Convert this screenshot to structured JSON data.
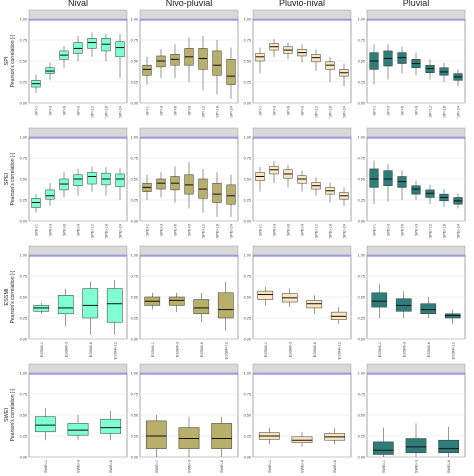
{
  "regimes": [
    "Nival",
    "Nivo-pluvial",
    "Pluvio-nival",
    "Pluvial"
  ],
  "colors": {
    "Nival": "#7fffd4",
    "Nivo-pluvial": "#b8b06a",
    "Pluvio-nival": "#fbe6bd",
    "Pluvial": "#2e7d7b",
    "reference_line": "#6d6dff",
    "grid": "#e4e4e4"
  },
  "chart_data": [
    {
      "type": "box",
      "row": 0,
      "index_label": "SPI",
      "ylabel": "Pearson's correlation [-]",
      "categories": [
        "SPI-1",
        "SPI-3",
        "SPI-6",
        "SPI-9",
        "SPI-12",
        "SPI-18",
        "SPI-24"
      ],
      "yticks": [
        0.0,
        0.25,
        0.5,
        0.75,
        1.0
      ],
      "ylim": [
        0,
        1
      ],
      "panels": [
        {
          "regime": "Nival",
          "boxes": [
            [
              0.12,
              0.19,
              0.23,
              0.27,
              0.34
            ],
            [
              0.27,
              0.35,
              0.38,
              0.42,
              0.48
            ],
            [
              0.42,
              0.52,
              0.57,
              0.62,
              0.68
            ],
            [
              0.5,
              0.59,
              0.65,
              0.72,
              0.8
            ],
            [
              0.55,
              0.65,
              0.72,
              0.77,
              0.84
            ],
            [
              0.5,
              0.62,
              0.7,
              0.77,
              0.82
            ],
            [
              0.3,
              0.55,
              0.66,
              0.73,
              0.82
            ]
          ]
        },
        {
          "regime": "Nivo-pluvial",
          "boxes": [
            [
              0.22,
              0.33,
              0.4,
              0.45,
              0.55
            ],
            [
              0.3,
              0.43,
              0.5,
              0.56,
              0.64
            ],
            [
              0.3,
              0.45,
              0.52,
              0.58,
              0.7
            ],
            [
              0.25,
              0.45,
              0.55,
              0.65,
              0.78
            ],
            [
              0.15,
              0.4,
              0.53,
              0.65,
              0.8
            ],
            [
              0.1,
              0.33,
              0.45,
              0.62,
              0.75
            ],
            [
              0.05,
              0.22,
              0.32,
              0.52,
              0.66
            ]
          ]
        },
        {
          "regime": "Pluvio-nival",
          "boxes": [
            [
              0.35,
              0.5,
              0.55,
              0.59,
              0.66
            ],
            [
              0.55,
              0.63,
              0.67,
              0.71,
              0.76
            ],
            [
              0.52,
              0.59,
              0.63,
              0.67,
              0.72
            ],
            [
              0.48,
              0.56,
              0.6,
              0.64,
              0.7
            ],
            [
              0.38,
              0.49,
              0.54,
              0.58,
              0.64
            ],
            [
              0.25,
              0.4,
              0.45,
              0.49,
              0.55
            ],
            [
              0.2,
              0.32,
              0.36,
              0.4,
              0.47
            ]
          ]
        },
        {
          "regime": "Pluvial",
          "boxes": [
            [
              0.22,
              0.4,
              0.5,
              0.6,
              0.7
            ],
            [
              0.28,
              0.44,
              0.53,
              0.62,
              0.7
            ],
            [
              0.35,
              0.47,
              0.54,
              0.6,
              0.67
            ],
            [
              0.33,
              0.42,
              0.47,
              0.52,
              0.6
            ],
            [
              0.28,
              0.36,
              0.41,
              0.45,
              0.52
            ],
            [
              0.25,
              0.33,
              0.37,
              0.42,
              0.48
            ],
            [
              0.2,
              0.27,
              0.31,
              0.35,
              0.4
            ]
          ]
        }
      ]
    },
    {
      "type": "box",
      "row": 1,
      "index_label": "SPEI",
      "ylabel": "Pearson's correlation [-]",
      "categories": [
        "SPEI-1",
        "SPEI-3",
        "SPEI-6",
        "SPEI-9",
        "SPEI-12",
        "SPEI-18",
        "SPEI-24"
      ],
      "yticks": [
        0.0,
        0.25,
        0.5,
        0.75,
        1.0
      ],
      "ylim": [
        0,
        1
      ],
      "panels": [
        {
          "regime": "Nival",
          "boxes": [
            [
              0.1,
              0.16,
              0.22,
              0.27,
              0.32
            ],
            [
              0.18,
              0.26,
              0.3,
              0.37,
              0.45
            ],
            [
              0.28,
              0.37,
              0.44,
              0.5,
              0.58
            ],
            [
              0.3,
              0.42,
              0.5,
              0.55,
              0.62
            ],
            [
              0.35,
              0.44,
              0.53,
              0.58,
              0.65
            ],
            [
              0.3,
              0.43,
              0.5,
              0.57,
              0.64
            ],
            [
              0.25,
              0.41,
              0.5,
              0.56,
              0.63
            ]
          ]
        },
        {
          "regime": "Nivo-pluvial",
          "boxes": [
            [
              0.25,
              0.35,
              0.4,
              0.45,
              0.55
            ],
            [
              0.28,
              0.38,
              0.45,
              0.5,
              0.58
            ],
            [
              0.22,
              0.37,
              0.45,
              0.53,
              0.65
            ],
            [
              0.15,
              0.32,
              0.43,
              0.55,
              0.7
            ],
            [
              0.1,
              0.27,
              0.38,
              0.5,
              0.62
            ],
            [
              0.05,
              0.22,
              0.32,
              0.45,
              0.58
            ],
            [
              0.05,
              0.2,
              0.3,
              0.43,
              0.55
            ]
          ]
        },
        {
          "regime": "Pluvio-nival",
          "boxes": [
            [
              0.35,
              0.48,
              0.53,
              0.58,
              0.64
            ],
            [
              0.45,
              0.56,
              0.61,
              0.65,
              0.71
            ],
            [
              0.4,
              0.51,
              0.56,
              0.61,
              0.67
            ],
            [
              0.35,
              0.45,
              0.5,
              0.54,
              0.6
            ],
            [
              0.3,
              0.38,
              0.42,
              0.46,
              0.52
            ],
            [
              0.22,
              0.32,
              0.36,
              0.4,
              0.46
            ],
            [
              0.18,
              0.26,
              0.3,
              0.34,
              0.4
            ]
          ]
        },
        {
          "regime": "Pluvial",
          "boxes": [
            [
              0.2,
              0.4,
              0.5,
              0.62,
              0.72
            ],
            [
              0.23,
              0.42,
              0.5,
              0.6,
              0.68
            ],
            [
              0.25,
              0.4,
              0.47,
              0.53,
              0.6
            ],
            [
              0.25,
              0.32,
              0.38,
              0.42,
              0.48
            ],
            [
              0.2,
              0.28,
              0.33,
              0.37,
              0.43
            ],
            [
              0.17,
              0.24,
              0.28,
              0.32,
              0.38
            ],
            [
              0.15,
              0.2,
              0.24,
              0.28,
              0.33
            ]
          ]
        }
      ]
    },
    {
      "type": "box",
      "row": 2,
      "index_label": "ESSMI",
      "ylabel": "Pearson's correlation [-]",
      "categories": [
        "ESSMI-1",
        "ESSMI-3",
        "ESSMI-6",
        "ESSMI-12"
      ],
      "yticks": [
        0.0,
        0.25,
        0.5,
        0.75,
        1.0
      ],
      "ylim": [
        0,
        1
      ],
      "panels": [
        {
          "regime": "Nival",
          "boxes": [
            [
              0.3,
              0.33,
              0.37,
              0.4,
              0.43
            ],
            [
              0.15,
              0.3,
              0.37,
              0.52,
              0.6
            ],
            [
              0.05,
              0.25,
              0.4,
              0.6,
              0.68
            ],
            [
              0.05,
              0.2,
              0.42,
              0.6,
              0.7
            ]
          ]
        },
        {
          "regime": "Nivo-pluvial",
          "boxes": [
            [
              0.35,
              0.4,
              0.45,
              0.5,
              0.55
            ],
            [
              0.32,
              0.4,
              0.46,
              0.5,
              0.55
            ],
            [
              0.2,
              0.3,
              0.37,
              0.47,
              0.55
            ],
            [
              0.1,
              0.25,
              0.35,
              0.55,
              0.68
            ]
          ]
        },
        {
          "regime": "Pluvio-nival",
          "boxes": [
            [
              0.4,
              0.47,
              0.53,
              0.57,
              0.62
            ],
            [
              0.38,
              0.44,
              0.49,
              0.54,
              0.6
            ],
            [
              0.3,
              0.37,
              0.42,
              0.46,
              0.52
            ],
            [
              0.18,
              0.23,
              0.27,
              0.32,
              0.38
            ]
          ]
        },
        {
          "regime": "Pluvial",
          "boxes": [
            [
              0.25,
              0.38,
              0.45,
              0.55,
              0.65
            ],
            [
              0.25,
              0.33,
              0.4,
              0.48,
              0.57
            ],
            [
              0.25,
              0.3,
              0.35,
              0.42,
              0.5
            ],
            [
              0.18,
              0.25,
              0.28,
              0.3,
              0.35
            ]
          ]
        }
      ]
    },
    {
      "type": "box",
      "row": 3,
      "index_label": "SWEI",
      "ylabel": "Pearson's correlation [-]",
      "categories": [
        "SWEI-1",
        "SWEI-3",
        "SWEI-6"
      ],
      "yticks": [
        0.0,
        0.25,
        0.5,
        0.75,
        1.0
      ],
      "ylim": [
        0,
        1
      ],
      "panels": [
        {
          "regime": "Nival",
          "boxes": [
            [
              0.2,
              0.3,
              0.38,
              0.48,
              0.58
            ],
            [
              0.2,
              0.26,
              0.32,
              0.4,
              0.5
            ],
            [
              0.2,
              0.28,
              0.35,
              0.45,
              0.55
            ]
          ]
        },
        {
          "regime": "Nivo-pluvial",
          "boxes": [
            [
              0.0,
              0.1,
              0.25,
              0.43,
              0.5
            ],
            [
              0.0,
              0.1,
              0.22,
              0.35,
              0.48
            ],
            [
              0.0,
              0.1,
              0.22,
              0.4,
              0.48
            ]
          ]
        },
        {
          "regime": "Pluvio-nival",
          "boxes": [
            [
              0.15,
              0.21,
              0.25,
              0.29,
              0.35
            ],
            [
              0.12,
              0.17,
              0.2,
              0.24,
              0.3
            ],
            [
              0.15,
              0.2,
              0.24,
              0.28,
              0.34
            ]
          ]
        },
        {
          "regime": "Pluvial",
          "boxes": [
            [
              0.0,
              0.03,
              0.08,
              0.18,
              0.35
            ],
            [
              0.0,
              0.05,
              0.12,
              0.22,
              0.4
            ],
            [
              0.0,
              0.05,
              0.1,
              0.2,
              0.36
            ]
          ]
        }
      ]
    }
  ]
}
